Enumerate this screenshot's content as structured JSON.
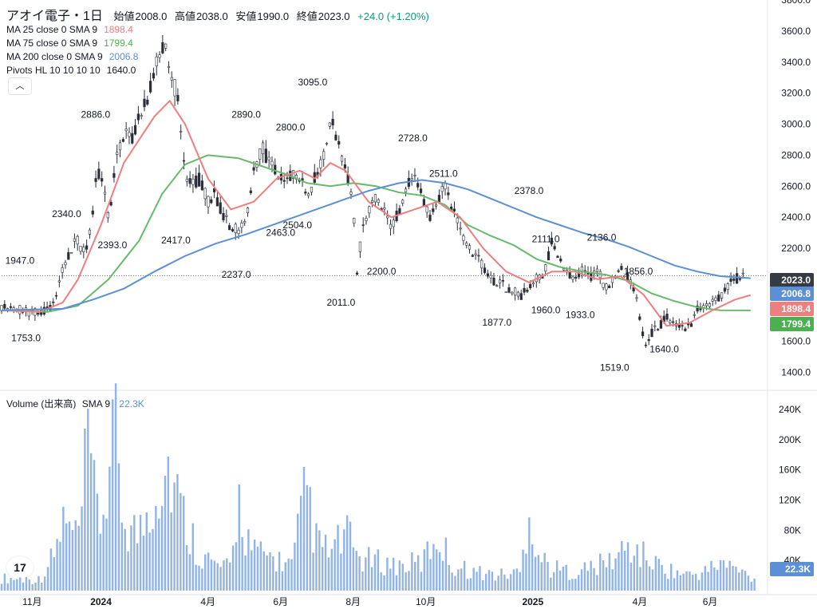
{
  "header": {
    "symbol": "アオイ電子・1日",
    "open_label": "始値",
    "open_value": "2008.0",
    "high_label": "高値",
    "high_value": "2038.0",
    "low_label": "安値",
    "low_value": "1990.0",
    "close_label": "終値",
    "close_value": "2023.0",
    "change": "+24.0 (+1.20%)"
  },
  "indicators": [
    {
      "label": "MA 25 close 0 SMA 9",
      "value": "1898.4",
      "color": "#ef7e7e"
    },
    {
      "label": "MA 75 close 0 SMA 9",
      "value": "1799.4",
      "color": "#66bb6a"
    },
    {
      "label": "MA 200 close 0 SMA 9",
      "value": "2006.8",
      "color": "#5b8fd6"
    },
    {
      "label": "Pivots HL 10 10 10 10",
      "value": "1640.0",
      "color": "#131722"
    }
  ],
  "collapse_icon": "chevron-up-icon",
  "volume_legend": {
    "label": "Volume (出来高)",
    "sma": "SMA 9",
    "value": "22.3K"
  },
  "price_badges": [
    {
      "value": "2023.0",
      "y": 2023.0,
      "color": "#363a45"
    },
    {
      "value": "2006.8",
      "y": 2006.8,
      "color": "#5b8fd6"
    },
    {
      "value": "1898.4",
      "y": 1898.4,
      "color": "#ef7e7e"
    },
    {
      "value": "1799.4",
      "y": 1799.4,
      "color": "#4caf50"
    }
  ],
  "volume_badge": "22.3K",
  "chart_data": {
    "type": "candlestick",
    "x_axis_labels": [
      {
        "label": "11月",
        "t": 0.04
      },
      {
        "label": "2024",
        "t": 0.13,
        "bold": true
      },
      {
        "label": "4月",
        "t": 0.27
      },
      {
        "label": "6月",
        "t": 0.365
      },
      {
        "label": "8月",
        "t": 0.46
      },
      {
        "label": "10月",
        "t": 0.555
      },
      {
        "label": "2025",
        "t": 0.695,
        "bold": true
      },
      {
        "label": "4月",
        "t": 0.835
      },
      {
        "label": "6月",
        "t": 0.927
      }
    ],
    "price_axis": {
      "ylim": [
        1300,
        3800
      ],
      "ticks": [
        1400,
        1600,
        1800,
        2000,
        2200,
        2400,
        2600,
        2800,
        3000,
        3200,
        3400,
        3600,
        3800
      ]
    },
    "volume_axis": {
      "ylim": [
        0,
        260000
      ],
      "ticks": [
        40000,
        80000,
        120000,
        160000,
        200000,
        240000
      ],
      "tick_labels": [
        "40K",
        "80K",
        "120K",
        "160K",
        "200K",
        "240K"
      ]
    },
    "price_path": [
      [
        0,
        1830
      ],
      [
        0.02,
        1810
      ],
      [
        0.035,
        1790
      ],
      [
        0.05,
        1780
      ],
      [
        0.06,
        1800
      ],
      [
        0.07,
        1860
      ],
      [
        0.08,
        2050
      ],
      [
        0.09,
        2200
      ],
      [
        0.1,
        2250
      ],
      [
        0.11,
        2150
      ],
      [
        0.12,
        2450
      ],
      [
        0.125,
        2700
      ],
      [
        0.13,
        2650
      ],
      [
        0.14,
        2400
      ],
      [
        0.15,
        2750
      ],
      [
        0.16,
        2950
      ],
      [
        0.17,
        2900
      ],
      [
        0.18,
        3050
      ],
      [
        0.19,
        3150
      ],
      [
        0.2,
        3350
      ],
      [
        0.21,
        3500
      ],
      [
        0.215,
        3550
      ],
      [
        0.22,
        3300
      ],
      [
        0.23,
        3200
      ],
      [
        0.235,
        2900
      ],
      [
        0.24,
        2650
      ],
      [
        0.25,
        2600
      ],
      [
        0.26,
        2650
      ],
      [
        0.27,
        2500
      ],
      [
        0.28,
        2550
      ],
      [
        0.29,
        2400
      ],
      [
        0.3,
        2350
      ],
      [
        0.31,
        2300
      ],
      [
        0.32,
        2400
      ],
      [
        0.33,
        2700
      ],
      [
        0.34,
        2850
      ],
      [
        0.35,
        2750
      ],
      [
        0.36,
        2700
      ],
      [
        0.37,
        2600
      ],
      [
        0.38,
        2700
      ],
      [
        0.39,
        2650
      ],
      [
        0.4,
        2550
      ],
      [
        0.41,
        2650
      ],
      [
        0.42,
        2750
      ],
      [
        0.43,
        3050
      ],
      [
        0.44,
        2900
      ],
      [
        0.45,
        2700
      ],
      [
        0.46,
        2500
      ],
      [
        0.465,
        2050
      ],
      [
        0.47,
        2250
      ],
      [
        0.48,
        2450
      ],
      [
        0.49,
        2550
      ],
      [
        0.5,
        2450
      ],
      [
        0.51,
        2300
      ],
      [
        0.52,
        2450
      ],
      [
        0.53,
        2600
      ],
      [
        0.54,
        2650
      ],
      [
        0.55,
        2550
      ],
      [
        0.56,
        2400
      ],
      [
        0.57,
        2500
      ],
      [
        0.58,
        2600
      ],
      [
        0.59,
        2450
      ],
      [
        0.6,
        2300
      ],
      [
        0.62,
        2150
      ],
      [
        0.64,
        2000
      ],
      [
        0.66,
        1950
      ],
      [
        0.68,
        1900
      ],
      [
        0.7,
        2000
      ],
      [
        0.71,
        2050
      ],
      [
        0.72,
        2250
      ],
      [
        0.73,
        2150
      ],
      [
        0.74,
        2050
      ],
      [
        0.75,
        2000
      ],
      [
        0.76,
        2050
      ],
      [
        0.77,
        2000
      ],
      [
        0.78,
        2050
      ],
      [
        0.79,
        1950
      ],
      [
        0.8,
        2000
      ],
      [
        0.81,
        2100
      ],
      [
        0.82,
        2000
      ],
      [
        0.83,
        1900
      ],
      [
        0.835,
        1750
      ],
      [
        0.84,
        1600
      ],
      [
        0.845,
        1550
      ],
      [
        0.85,
        1650
      ],
      [
        0.86,
        1700
      ],
      [
        0.87,
        1750
      ],
      [
        0.88,
        1700
      ],
      [
        0.89,
        1680
      ],
      [
        0.9,
        1700
      ],
      [
        0.91,
        1800
      ],
      [
        0.92,
        1820
      ],
      [
        0.93,
        1850
      ],
      [
        0.94,
        1900
      ],
      [
        0.95,
        1950
      ],
      [
        0.96,
        2000
      ],
      [
        0.97,
        2023
      ]
    ],
    "ma25": [
      [
        0,
        1800
      ],
      [
        0.05,
        1790
      ],
      [
        0.08,
        1850
      ],
      [
        0.1,
        2000
      ],
      [
        0.13,
        2350
      ],
      [
        0.16,
        2750
      ],
      [
        0.2,
        3050
      ],
      [
        0.22,
        3150
      ],
      [
        0.24,
        3000
      ],
      [
        0.27,
        2650
      ],
      [
        0.3,
        2450
      ],
      [
        0.33,
        2500
      ],
      [
        0.36,
        2650
      ],
      [
        0.39,
        2700
      ],
      [
        0.41,
        2650
      ],
      [
        0.43,
        2750
      ],
      [
        0.45,
        2700
      ],
      [
        0.48,
        2500
      ],
      [
        0.51,
        2400
      ],
      [
        0.54,
        2450
      ],
      [
        0.57,
        2500
      ],
      [
        0.6,
        2400
      ],
      [
        0.63,
        2200
      ],
      [
        0.66,
        2050
      ],
      [
        0.69,
        1980
      ],
      [
        0.72,
        2050
      ],
      [
        0.75,
        2050
      ],
      [
        0.78,
        2000
      ],
      [
        0.81,
        2020
      ],
      [
        0.84,
        1900
      ],
      [
        0.87,
        1700
      ],
      [
        0.9,
        1720
      ],
      [
        0.93,
        1800
      ],
      [
        0.96,
        1870
      ],
      [
        0.98,
        1898
      ]
    ],
    "ma75": [
      [
        0,
        1800
      ],
      [
        0.06,
        1790
      ],
      [
        0.1,
        1830
      ],
      [
        0.14,
        2000
      ],
      [
        0.18,
        2250
      ],
      [
        0.21,
        2550
      ],
      [
        0.24,
        2740
      ],
      [
        0.27,
        2800
      ],
      [
        0.31,
        2780
      ],
      [
        0.34,
        2730
      ],
      [
        0.37,
        2680
      ],
      [
        0.4,
        2620
      ],
      [
        0.43,
        2600
      ],
      [
        0.46,
        2620
      ],
      [
        0.49,
        2600
      ],
      [
        0.52,
        2560
      ],
      [
        0.55,
        2540
      ],
      [
        0.58,
        2480
      ],
      [
        0.61,
        2350
      ],
      [
        0.64,
        2280
      ],
      [
        0.67,
        2220
      ],
      [
        0.7,
        2130
      ],
      [
        0.73,
        2080
      ],
      [
        0.76,
        2050
      ],
      [
        0.79,
        2030
      ],
      [
        0.82,
        1990
      ],
      [
        0.85,
        1910
      ],
      [
        0.88,
        1860
      ],
      [
        0.91,
        1820
      ],
      [
        0.94,
        1800
      ],
      [
        0.98,
        1799.4
      ]
    ],
    "ma200": [
      [
        0,
        1800
      ],
      [
        0.08,
        1810
      ],
      [
        0.12,
        1870
      ],
      [
        0.16,
        1940
      ],
      [
        0.2,
        2050
      ],
      [
        0.24,
        2150
      ],
      [
        0.28,
        2230
      ],
      [
        0.32,
        2290
      ],
      [
        0.36,
        2360
      ],
      [
        0.4,
        2430
      ],
      [
        0.44,
        2500
      ],
      [
        0.48,
        2570
      ],
      [
        0.52,
        2620
      ],
      [
        0.55,
        2640
      ],
      [
        0.58,
        2620
      ],
      [
        0.61,
        2580
      ],
      [
        0.64,
        2520
      ],
      [
        0.67,
        2460
      ],
      [
        0.7,
        2400
      ],
      [
        0.73,
        2350
      ],
      [
        0.76,
        2300
      ],
      [
        0.79,
        2260
      ],
      [
        0.82,
        2210
      ],
      [
        0.85,
        2150
      ],
      [
        0.88,
        2090
      ],
      [
        0.91,
        2050
      ],
      [
        0.94,
        2020
      ],
      [
        0.98,
        2006.8
      ]
    ],
    "pivot_labels": [
      {
        "text": "1947.0",
        "t": 0.024,
        "y": 2100
      },
      {
        "text": "1753.0",
        "t": 0.032,
        "y": 1600
      },
      {
        "text": "2340.0",
        "t": 0.085,
        "y": 2400
      },
      {
        "text": "2886.0",
        "t": 0.123,
        "y": 3040
      },
      {
        "text": "2393.0",
        "t": 0.145,
        "y": 2200
      },
      {
        "text": "2417.0",
        "t": 0.228,
        "y": 2230
      },
      {
        "text": "2237.0",
        "t": 0.307,
        "y": 2010
      },
      {
        "text": "2890.0",
        "t": 0.32,
        "y": 3040
      },
      {
        "text": "2800.0",
        "t": 0.378,
        "y": 2960
      },
      {
        "text": "2463.0",
        "t": 0.365,
        "y": 2280
      },
      {
        "text": "2504.0",
        "t": 0.387,
        "y": 2330
      },
      {
        "text": "3095.0",
        "t": 0.407,
        "y": 3250
      },
      {
        "text": "2011.0",
        "t": 0.444,
        "y": 1830
      },
      {
        "text": "2200.0",
        "t": 0.497,
        "y": 2030
      },
      {
        "text": "2728.0",
        "t": 0.538,
        "y": 2890
      },
      {
        "text": "2511.0",
        "t": 0.578,
        "y": 2660
      },
      {
        "text": "1877.0",
        "t": 0.648,
        "y": 1700
      },
      {
        "text": "2378.0",
        "t": 0.69,
        "y": 2550
      },
      {
        "text": "1960.0",
        "t": 0.712,
        "y": 1780
      },
      {
        "text": "2111.0",
        "t": 0.712,
        "y": 2240
      },
      {
        "text": "1933.0",
        "t": 0.757,
        "y": 1750
      },
      {
        "text": "2136.0",
        "t": 0.785,
        "y": 2250
      },
      {
        "text": "1856.0",
        "t": 0.833,
        "y": 2030
      },
      {
        "text": "1519.0",
        "t": 0.802,
        "y": 1410
      },
      {
        "text": "1640.0",
        "t": 0.867,
        "y": 1530
      }
    ],
    "volume_path": [
      [
        0,
        20000
      ],
      [
        0.05,
        18000
      ],
      [
        0.07,
        60000
      ],
      [
        0.08,
        110000
      ],
      [
        0.1,
        80000
      ],
      [
        0.115,
        245000
      ],
      [
        0.12,
        150000
      ],
      [
        0.13,
        110000
      ],
      [
        0.15,
        245000
      ],
      [
        0.16,
        110000
      ],
      [
        0.18,
        90000
      ],
      [
        0.2,
        160000
      ],
      [
        0.21,
        190000
      ],
      [
        0.22,
        200000
      ],
      [
        0.23,
        150000
      ],
      [
        0.24,
        110000
      ],
      [
        0.26,
        60000
      ],
      [
        0.28,
        40000
      ],
      [
        0.3,
        35000
      ],
      [
        0.31,
        150000
      ],
      [
        0.32,
        90000
      ],
      [
        0.33,
        60000
      ],
      [
        0.35,
        55000
      ],
      [
        0.38,
        40000
      ],
      [
        0.4,
        170000
      ],
      [
        0.41,
        80000
      ],
      [
        0.43,
        60000
      ],
      [
        0.45,
        90000
      ],
      [
        0.47,
        50000
      ],
      [
        0.5,
        45000
      ],
      [
        0.52,
        40000
      ],
      [
        0.55,
        45000
      ],
      [
        0.57,
        90000
      ],
      [
        0.59,
        40000
      ],
      [
        0.62,
        30000
      ],
      [
        0.65,
        25000
      ],
      [
        0.68,
        30000
      ],
      [
        0.69,
        150000
      ],
      [
        0.7,
        60000
      ],
      [
        0.72,
        35000
      ],
      [
        0.75,
        30000
      ],
      [
        0.78,
        40000
      ],
      [
        0.8,
        50000
      ],
      [
        0.82,
        70000
      ],
      [
        0.84,
        55000
      ],
      [
        0.86,
        40000
      ],
      [
        0.88,
        30000
      ],
      [
        0.9,
        25000
      ],
      [
        0.92,
        30000
      ],
      [
        0.94,
        45000
      ],
      [
        0.96,
        35000
      ],
      [
        0.98,
        22300
      ]
    ]
  }
}
